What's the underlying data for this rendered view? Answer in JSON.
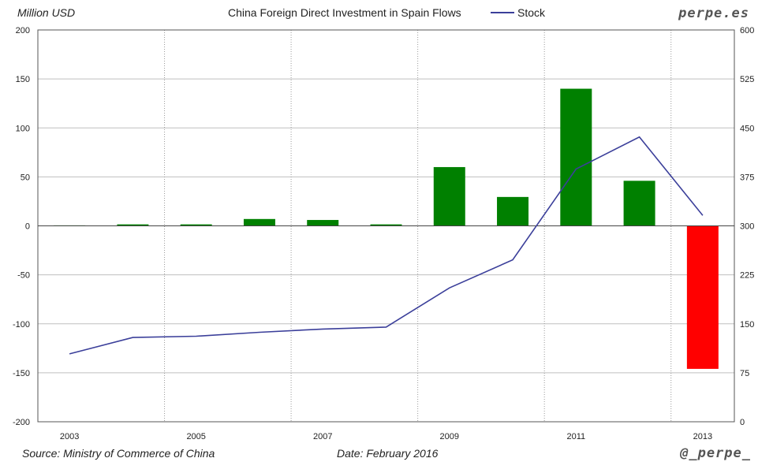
{
  "header": {
    "unit_label": "Million USD",
    "title": "China Foreign Direct Investment in Spain Flows",
    "legend_stock": "Stock",
    "brand": "perpe.es"
  },
  "footer": {
    "source": "Source: Ministry of Commerce of China",
    "date": "Date: February 2016",
    "handle": "@_perpe_"
  },
  "colors": {
    "positive_bar": "#008000",
    "negative_bar": "#ff0000",
    "stock_line": "#3b3f9a",
    "grid": "#bfbfbf"
  },
  "chart_data": {
    "type": "bar",
    "title": "China Foreign Direct Investment in Spain Flows",
    "ylabel": "Million USD",
    "categories": [
      "2003",
      "2004",
      "2005",
      "2006",
      "2007",
      "2008",
      "2009",
      "2010",
      "2011",
      "2012",
      "2013"
    ],
    "x_tick_labels": [
      "2003",
      "2005",
      "2007",
      "2009",
      "2011",
      "2013"
    ],
    "series": [
      {
        "name": "Flows",
        "axis": "left",
        "type": "bar",
        "values": [
          0.5,
          1.5,
          1.5,
          7,
          6,
          1.5,
          60,
          29.5,
          140,
          46,
          -146
        ]
      },
      {
        "name": "Stock",
        "axis": "right",
        "type": "line",
        "values": [
          104,
          129,
          131,
          137,
          142,
          145,
          205,
          248,
          387,
          436,
          316
        ]
      }
    ],
    "ylim_left": [
      -200,
      200
    ],
    "yticks_left": [
      -200,
      -150,
      -100,
      -50,
      0,
      50,
      100,
      150,
      200
    ],
    "ylim_right": [
      0,
      600
    ],
    "yticks_right": [
      0,
      75,
      150,
      225,
      300,
      375,
      450,
      525,
      600
    ],
    "grid": true,
    "legend_position": "top"
  }
}
